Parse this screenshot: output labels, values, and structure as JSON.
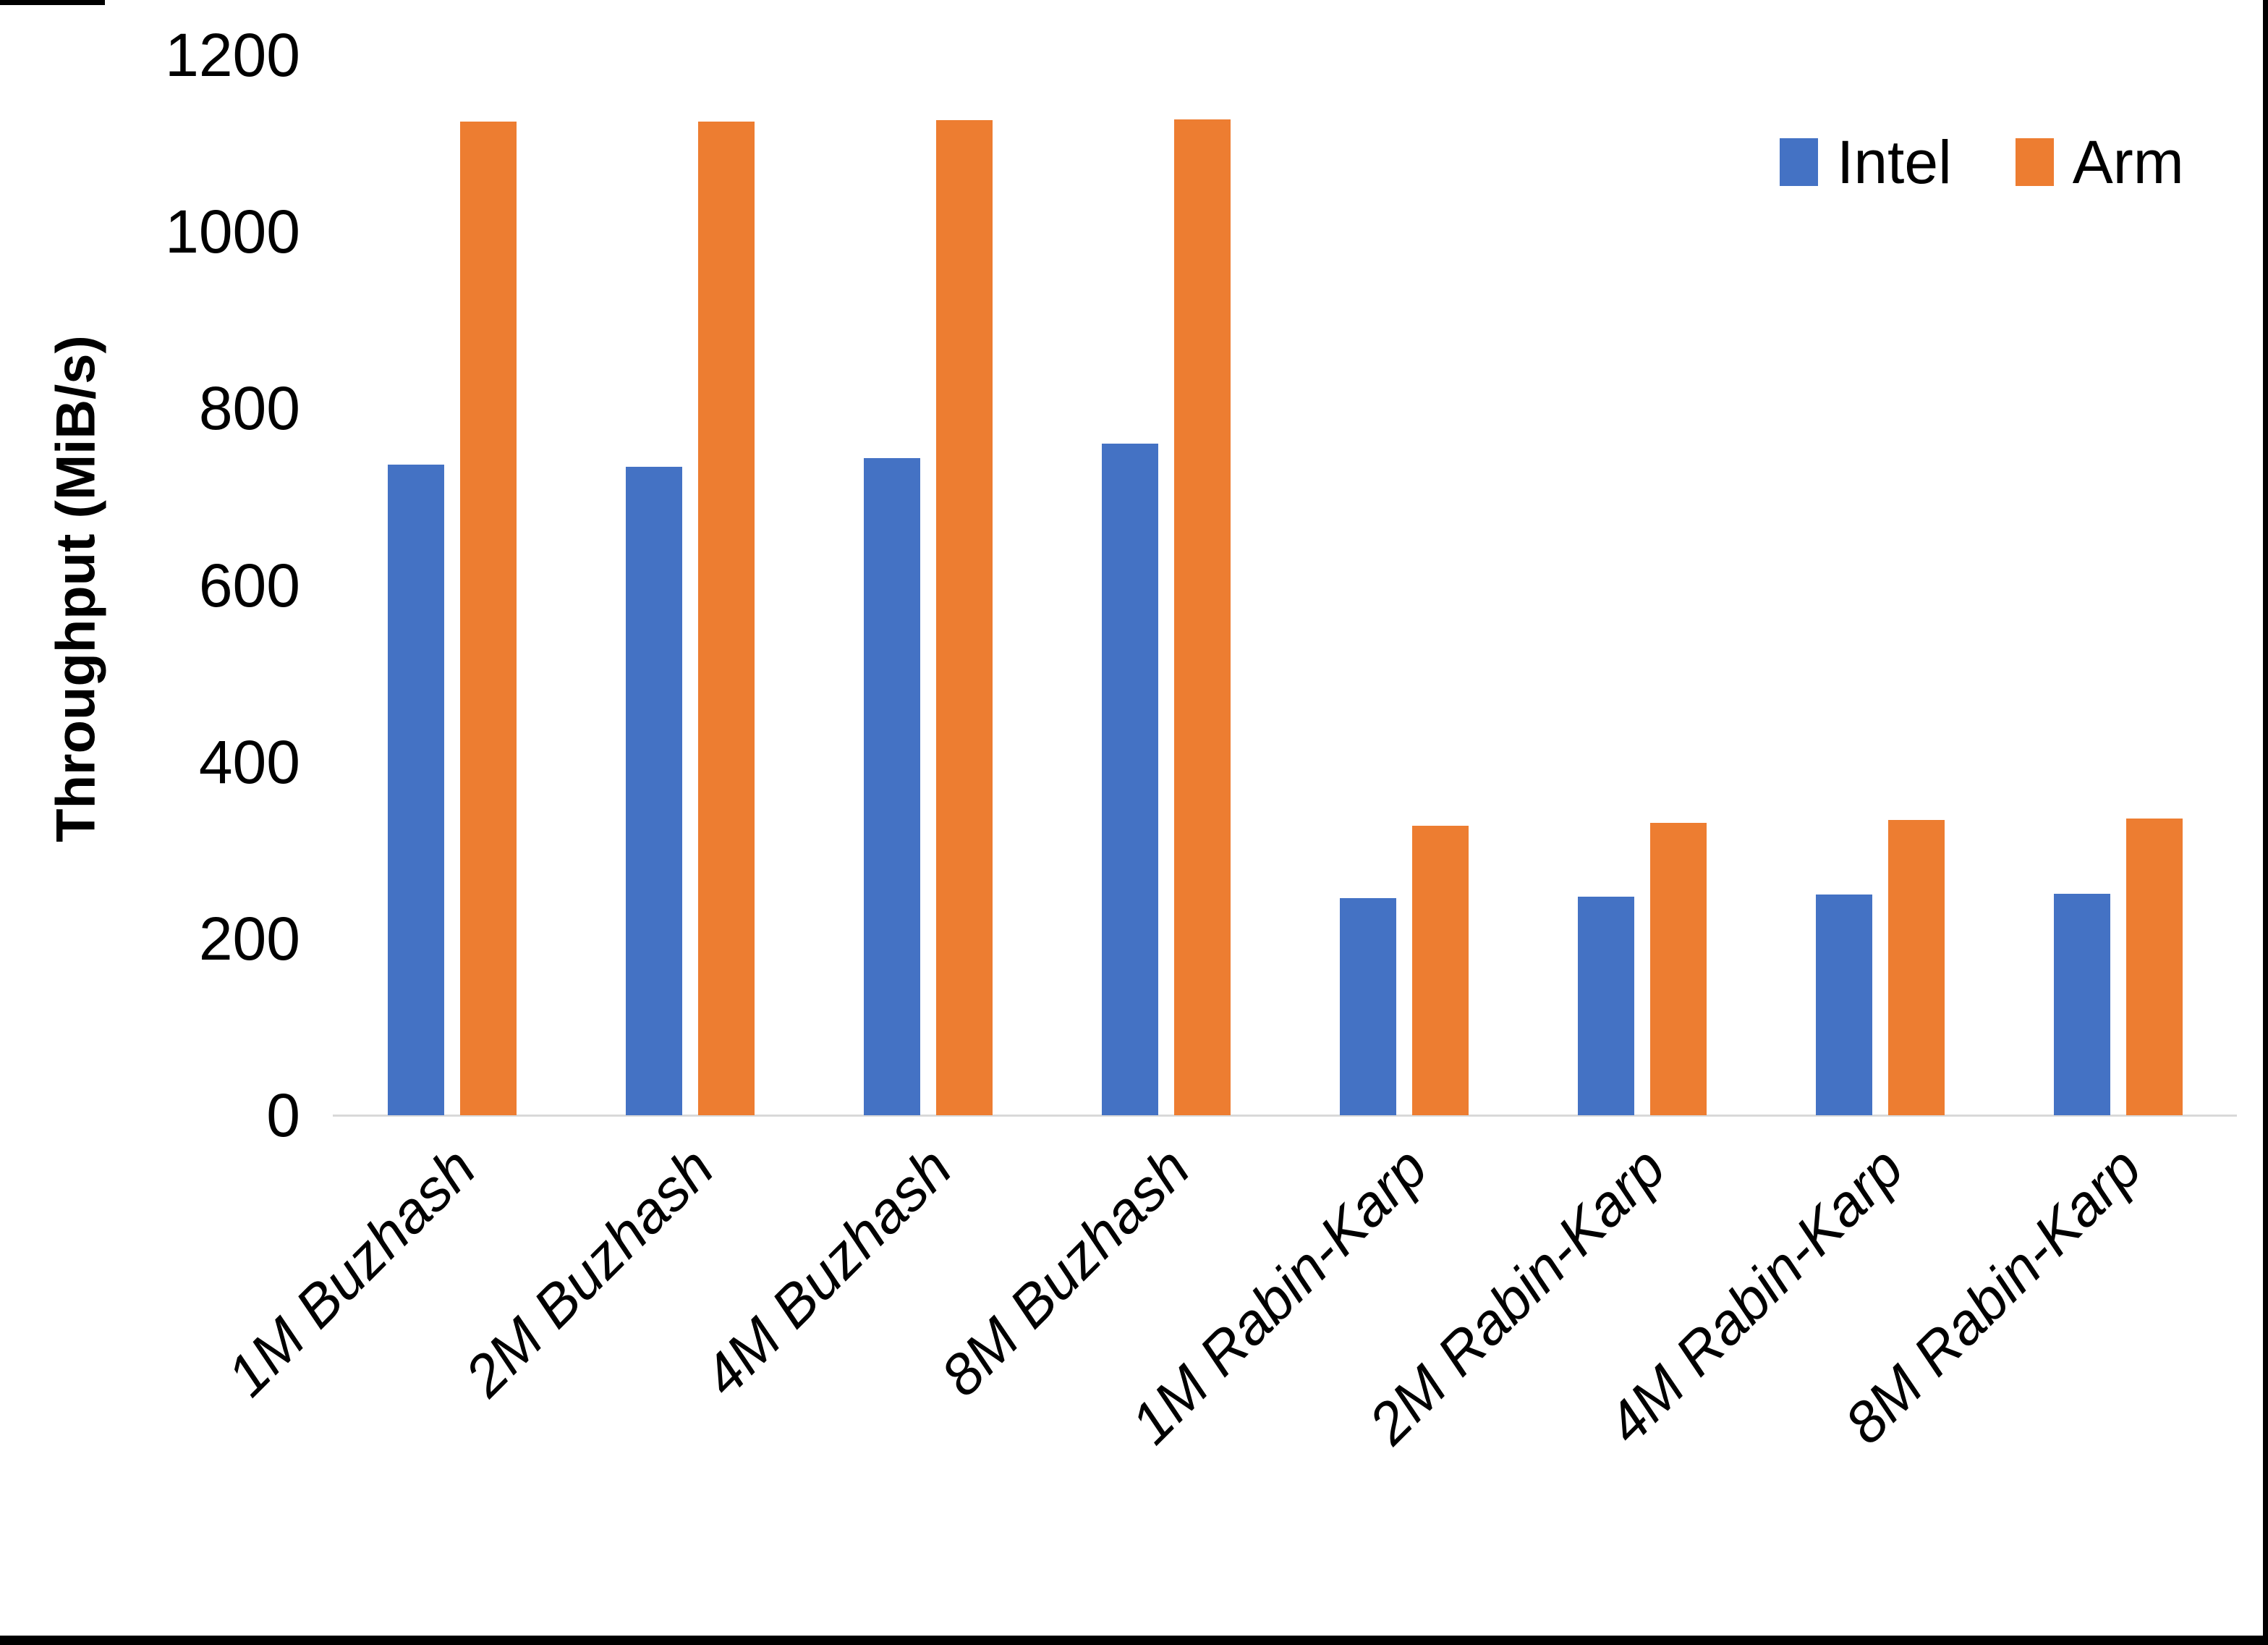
{
  "chart_data": {
    "type": "bar",
    "title": "",
    "xlabel": "",
    "ylabel": "Throughput (MiB/s)",
    "ylim": [
      0,
      1200
    ],
    "yticks": [
      0,
      200,
      400,
      600,
      800,
      1000,
      1200
    ],
    "grid": false,
    "legend_position": "top-right",
    "axis_line_color": "#d9d9d9",
    "categories": [
      "1M Buzhash",
      "2M Buzhash",
      "4M Buzhash",
      "8M Buzhash",
      "1M Rabin-Karp",
      "2M Rabin-Karp",
      "4M Rabin-Karp",
      "8M Rabin-Karp"
    ],
    "series": [
      {
        "name": "Intel",
        "color": "#4472c4",
        "values": [
          736,
          734,
          744,
          760,
          246,
          247,
          250,
          251
        ]
      },
      {
        "name": "Arm",
        "color": "#ed7d31",
        "values": [
          1125,
          1125,
          1126,
          1127,
          328,
          331,
          334,
          336
        ]
      }
    ]
  },
  "legend": {
    "items": [
      {
        "label": "Intel",
        "color": "#4472c4"
      },
      {
        "label": "Arm",
        "color": "#ed7d31"
      }
    ]
  }
}
